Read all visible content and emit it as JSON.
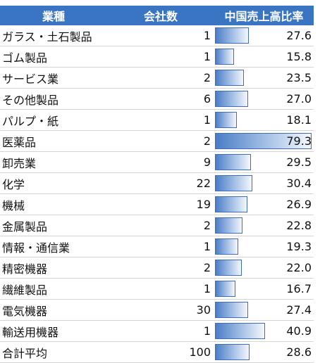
{
  "header": {
    "col1": "業種",
    "col2": "会社数",
    "col3": "中国売上高比率"
  },
  "rows": [
    {
      "name": "ガラス・土石製品",
      "count": "1",
      "ratio": "27.6"
    },
    {
      "name": "ゴム製品",
      "count": "1",
      "ratio": "15.8"
    },
    {
      "name": "サービス業",
      "count": "2",
      "ratio": "23.5"
    },
    {
      "name": "その他製品",
      "count": "6",
      "ratio": "27.0"
    },
    {
      "name": "パルプ・紙",
      "count": "1",
      "ratio": "18.1"
    },
    {
      "name": "医薬品",
      "count": "2",
      "ratio": "79.3"
    },
    {
      "name": "卸売業",
      "count": "9",
      "ratio": "29.5"
    },
    {
      "name": "化学",
      "count": "22",
      "ratio": "30.4"
    },
    {
      "name": "機械",
      "count": "19",
      "ratio": "26.9"
    },
    {
      "name": "金属製品",
      "count": "2",
      "ratio": "22.8"
    },
    {
      "name": "情報・通信業",
      "count": "1",
      "ratio": "19.3"
    },
    {
      "name": "精密機器",
      "count": "2",
      "ratio": "22.0"
    },
    {
      "name": "繊維製品",
      "count": "1",
      "ratio": "16.7"
    },
    {
      "name": "電気機器",
      "count": "30",
      "ratio": "27.4"
    },
    {
      "name": "輸送用機器",
      "count": "1",
      "ratio": "40.9"
    },
    {
      "name": "合計平均",
      "count": "100",
      "ratio": "28.6"
    }
  ],
  "bar_max": 79.3,
  "colors": {
    "header_bg": "#3a75c4",
    "bar_start": "#4a7dc6",
    "bar_border": "#3a6fbf"
  }
}
